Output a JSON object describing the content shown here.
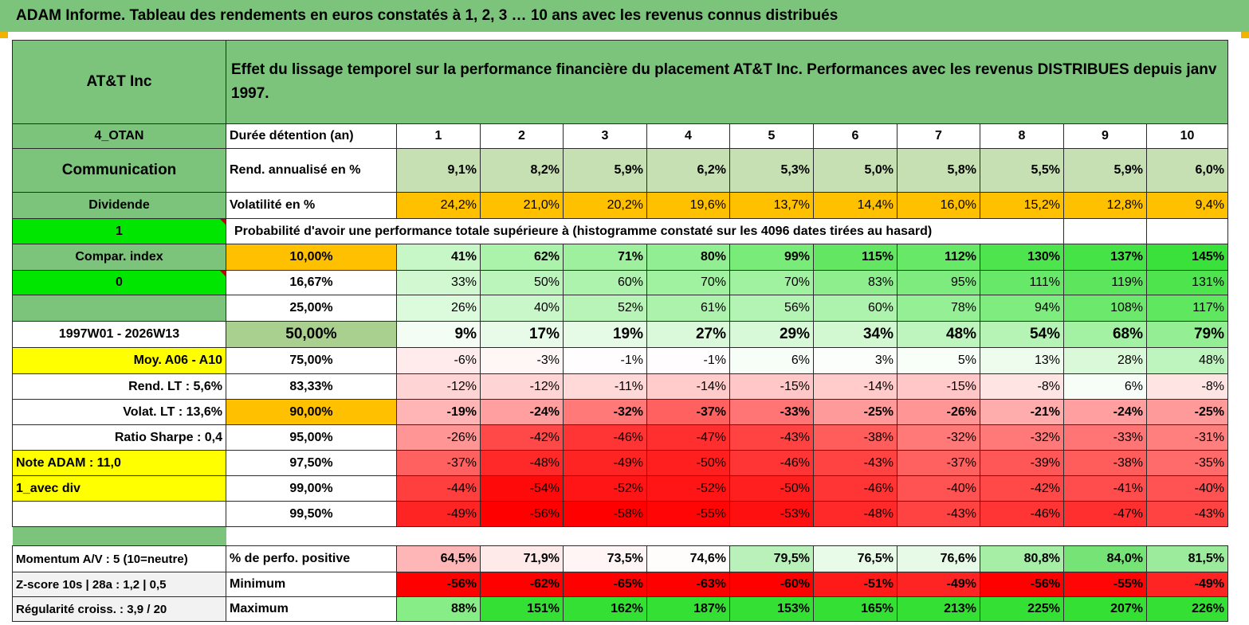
{
  "header": {
    "title": "ADAM Informe. Tableau des rendements en euros constatés à 1, 2, 3 … 10 ans avec les revenus connus distribués"
  },
  "colors": {
    "green_header": "#7cc47c",
    "light_green": "#c6e0b4",
    "orange": "#ffc000",
    "yellow": "#ffff00",
    "bright_green": "#00e600",
    "red_text": "#e02020"
  },
  "left": {
    "name": "AT&T Inc",
    "code": "4_OTAN",
    "sector": "Communication",
    "type": "Dividende",
    "flag1": "1",
    "compar": "Compar. index",
    "flag0": "0",
    "period": "1997W01 - 2026W13",
    "moy": "Moy. A06 - A10",
    "rend_lt": "Rend. LT :   5,6%",
    "volat_lt": "Volat. LT :   13,6%",
    "sharpe": "Ratio Sharpe :    0,4",
    "note": "Note ADAM : 11,0",
    "avec_div": "1_avec div",
    "momentum": "Momentum A/V : 5 (10=neutre)",
    "zscore": "Z-score 10s | 28a : 1,2 | 0,5",
    "regularite": "Régularité croiss. : 3,9 / 20"
  },
  "caption": "Effet du lissage temporel sur la performance financière du placement AT&T Inc. Performances avec les revenus DISTRIBUES depuis janv 1997.",
  "duree_label": "Durée détention (an)",
  "years": [
    "1",
    "2",
    "3",
    "4",
    "5",
    "6",
    "7",
    "8",
    "9",
    "10"
  ],
  "rend_label": "Rend. annualisé en %",
  "rend": [
    "9,1%",
    "8,2%",
    "5,9%",
    "6,2%",
    "5,3%",
    "5,0%",
    "5,8%",
    "5,5%",
    "5,9%",
    "6,0%"
  ],
  "vol_label": "Volatilité en %",
  "vol": [
    "24,2%",
    "21,0%",
    "20,2%",
    "19,6%",
    "13,7%",
    "14,4%",
    "16,0%",
    "15,2%",
    "12,8%",
    "9,4%"
  ],
  "prob_label": "Probabilité d'avoir une performance totale supérieure à (histogramme constaté sur les 4096 dates tirées au hasard)",
  "prob_rows": [
    {
      "pct": "10,00%",
      "values": [
        "41%",
        "62%",
        "71%",
        "80%",
        "99%",
        "115%",
        "112%",
        "130%",
        "137%",
        "145%"
      ]
    },
    {
      "pct": "16,67%",
      "values": [
        "33%",
        "50%",
        "60%",
        "70%",
        "70%",
        "83%",
        "95%",
        "111%",
        "119%",
        "131%"
      ]
    },
    {
      "pct": "25,00%",
      "values": [
        "26%",
        "40%",
        "52%",
        "61%",
        "56%",
        "60%",
        "78%",
        "94%",
        "108%",
        "117%"
      ]
    },
    {
      "pct": "50,00%",
      "values": [
        "9%",
        "17%",
        "19%",
        "27%",
        "29%",
        "34%",
        "48%",
        "54%",
        "68%",
        "79%"
      ]
    },
    {
      "pct": "75,00%",
      "values": [
        "-6%",
        "-3%",
        "-1%",
        "-1%",
        "6%",
        "3%",
        "5%",
        "13%",
        "28%",
        "48%"
      ]
    },
    {
      "pct": "83,33%",
      "values": [
        "-12%",
        "-12%",
        "-11%",
        "-14%",
        "-15%",
        "-14%",
        "-15%",
        "-8%",
        "6%",
        "-8%"
      ]
    },
    {
      "pct": "90,00%",
      "values": [
        "-19%",
        "-24%",
        "-32%",
        "-37%",
        "-33%",
        "-25%",
        "-26%",
        "-21%",
        "-24%",
        "-25%"
      ]
    },
    {
      "pct": "95,00%",
      "values": [
        "-26%",
        "-42%",
        "-46%",
        "-47%",
        "-43%",
        "-38%",
        "-32%",
        "-32%",
        "-33%",
        "-31%"
      ]
    },
    {
      "pct": "97,50%",
      "values": [
        "-37%",
        "-48%",
        "-49%",
        "-50%",
        "-46%",
        "-43%",
        "-37%",
        "-39%",
        "-38%",
        "-35%"
      ]
    },
    {
      "pct": "99,00%",
      "values": [
        "-44%",
        "-54%",
        "-52%",
        "-52%",
        "-50%",
        "-46%",
        "-40%",
        "-42%",
        "-41%",
        "-40%"
      ]
    },
    {
      "pct": "99,50%",
      "values": [
        "-49%",
        "-56%",
        "-58%",
        "-55%",
        "-53%",
        "-48%",
        "-43%",
        "-46%",
        "-47%",
        "-43%"
      ]
    }
  ],
  "pos_label": "% de perfo. positive",
  "pos": [
    "64,5%",
    "71,9%",
    "73,5%",
    "74,6%",
    "79,5%",
    "76,5%",
    "76,6%",
    "80,8%",
    "84,0%",
    "81,5%"
  ],
  "min_label": "Minimum",
  "min": [
    "-56%",
    "-62%",
    "-65%",
    "-63%",
    "-60%",
    "-51%",
    "-49%",
    "-56%",
    "-55%",
    "-49%"
  ],
  "max_label": "Maximum",
  "max": [
    "88%",
    "151%",
    "162%",
    "187%",
    "153%",
    "165%",
    "213%",
    "225%",
    "207%",
    "226%"
  ]
}
